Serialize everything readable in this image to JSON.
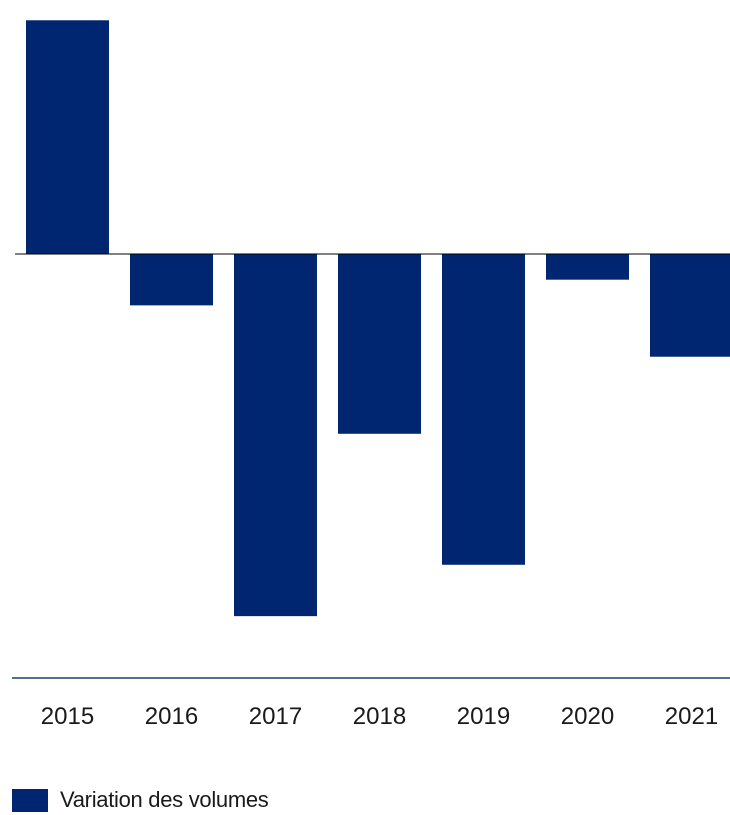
{
  "chart_data": {
    "type": "bar",
    "categories": [
      "2015",
      "2016",
      "2017",
      "2018",
      "2019",
      "2020",
      "2021"
    ],
    "series": [
      {
        "name": "Variation des volumes",
        "values": [
          9.1,
          -2.0,
          -14.1,
          -7.0,
          -12.1,
          -1.0,
          -4.0
        ]
      }
    ],
    "ylim": [
      -15.6,
      9.5
    ],
    "grid": false,
    "legend": "bottom-left",
    "colors": {
      "bar": "#002672",
      "zero_line": "#000000",
      "axis_line": "#1f3d78"
    }
  }
}
